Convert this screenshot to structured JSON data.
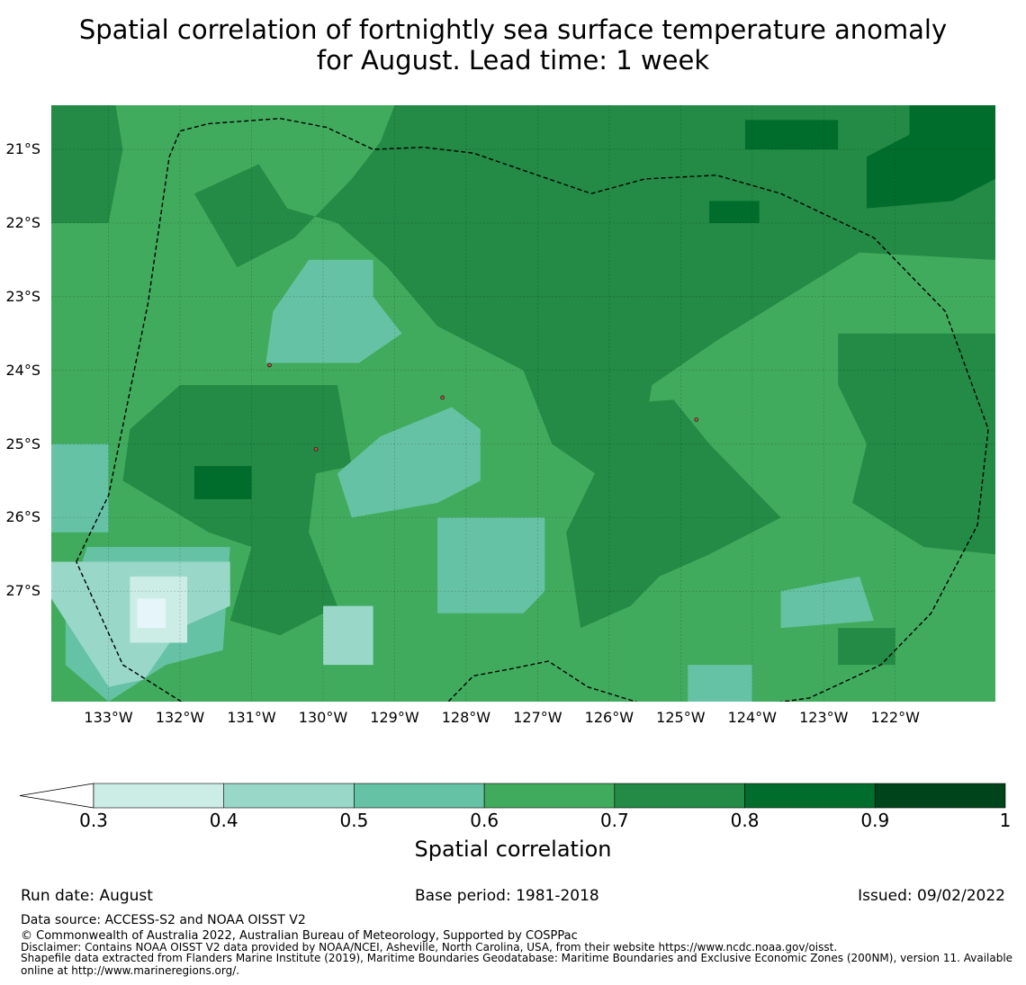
{
  "title": {
    "line1": "Spatial correlation of fortnightly sea surface temperature anomaly",
    "line2": "for August. Lead time: 1 week"
  },
  "map": {
    "lon_range": [
      -133.8,
      -120.6
    ],
    "lat_range": [
      -28.5,
      -20.4
    ],
    "lat_ticks": [
      {
        "value": -21,
        "label": "21°S"
      },
      {
        "value": -22,
        "label": "22°S"
      },
      {
        "value": -23,
        "label": "23°S"
      },
      {
        "value": -24,
        "label": "24°S"
      },
      {
        "value": -25,
        "label": "25°S"
      },
      {
        "value": -26,
        "label": "26°S"
      },
      {
        "value": -27,
        "label": "27°S"
      }
    ],
    "lon_ticks": [
      {
        "value": -133,
        "label": "133°W"
      },
      {
        "value": -132,
        "label": "132°W"
      },
      {
        "value": -131,
        "label": "131°W"
      },
      {
        "value": -130,
        "label": "130°W"
      },
      {
        "value": -129,
        "label": "129°W"
      },
      {
        "value": -128,
        "label": "128°W"
      },
      {
        "value": -127,
        "label": "127°W"
      },
      {
        "value": -126,
        "label": "126°W"
      },
      {
        "value": -125,
        "label": "125°W"
      },
      {
        "value": -124,
        "label": "124°W"
      },
      {
        "value": -123,
        "label": "123°W"
      },
      {
        "value": -122,
        "label": "122°W"
      }
    ],
    "base_color": "#41ab5d",
    "regions": [
      {
        "level": 0.7,
        "color": "#238b45",
        "poly": [
          [
            -129,
            -20.4
          ],
          [
            -120.6,
            -20.4
          ],
          [
            -120.6,
            -22.5
          ],
          [
            -122.5,
            -22.4
          ],
          [
            -123.5,
            -23.0
          ],
          [
            -124.5,
            -23.6
          ],
          [
            -125.4,
            -24.2
          ],
          [
            -125.6,
            -25.3
          ],
          [
            -126.2,
            -25.4
          ],
          [
            -126.8,
            -25.0
          ],
          [
            -127.2,
            -24.0
          ],
          [
            -128.4,
            -23.4
          ],
          [
            -129.1,
            -22.6
          ],
          [
            -129.8,
            -22.0
          ],
          [
            -130.5,
            -21.8
          ],
          [
            -130.9,
            -21.2
          ],
          [
            -131.8,
            -21.6
          ],
          [
            -131.2,
            -22.6
          ],
          [
            -130.4,
            -22.2
          ],
          [
            -129.6,
            -21.4
          ],
          [
            -129.2,
            -20.9
          ]
        ]
      },
      {
        "level": 0.7,
        "color": "#238b45",
        "poly": [
          [
            -133.8,
            -20.4
          ],
          [
            -132.9,
            -20.4
          ],
          [
            -132.8,
            -21.0
          ],
          [
            -133.0,
            -22.0
          ],
          [
            -133.8,
            -22.0
          ]
        ]
      },
      {
        "level": 0.7,
        "color": "#238b45",
        "poly": [
          [
            -132.0,
            -24.2
          ],
          [
            -129.8,
            -24.2
          ],
          [
            -129.6,
            -25.3
          ],
          [
            -130.1,
            -25.4
          ],
          [
            -130.2,
            -26.2
          ],
          [
            -129.8,
            -27.2
          ],
          [
            -130.6,
            -27.6
          ],
          [
            -131.3,
            -27.4
          ],
          [
            -131.0,
            -26.4
          ],
          [
            -131.6,
            -26.2
          ],
          [
            -132.8,
            -25.5
          ],
          [
            -132.7,
            -24.8
          ]
        ]
      },
      {
        "level": 0.7,
        "color": "#238b45",
        "poly": [
          [
            -126.5,
            -24.5
          ],
          [
            -125.1,
            -24.4
          ],
          [
            -124.6,
            -25.0
          ],
          [
            -124.1,
            -25.5
          ],
          [
            -123.6,
            -26.0
          ],
          [
            -124.6,
            -26.5
          ],
          [
            -125.3,
            -26.8
          ],
          [
            -125.7,
            -27.2
          ],
          [
            -126.4,
            -27.5
          ],
          [
            -126.6,
            -26.2
          ],
          [
            -126.2,
            -25.4
          ]
        ]
      },
      {
        "level": 0.7,
        "color": "#238b45",
        "poly": [
          [
            -122.8,
            -23.5
          ],
          [
            -120.6,
            -23.5
          ],
          [
            -120.6,
            -26.5
          ],
          [
            -121.6,
            -26.4
          ],
          [
            -122.6,
            -25.8
          ],
          [
            -122.4,
            -25.0
          ],
          [
            -122.8,
            -24.2
          ]
        ]
      },
      {
        "level": 0.7,
        "color": "#238b45",
        "poly": [
          [
            -122.8,
            -27.5
          ],
          [
            -122.0,
            -27.5
          ],
          [
            -122.0,
            -28.0
          ],
          [
            -122.8,
            -28.0
          ]
        ]
      },
      {
        "level": 0.8,
        "color": "#006d2c",
        "poly": [
          [
            -121.8,
            -20.4
          ],
          [
            -120.6,
            -20.4
          ],
          [
            -120.6,
            -21.4
          ],
          [
            -121.2,
            -21.7
          ],
          [
            -122.4,
            -21.8
          ],
          [
            -122.4,
            -21.1
          ],
          [
            -121.8,
            -20.8
          ]
        ]
      },
      {
        "level": 0.8,
        "color": "#006d2c",
        "poly": [
          [
            -124.1,
            -20.6
          ],
          [
            -122.8,
            -20.6
          ],
          [
            -122.8,
            -21.0
          ],
          [
            -124.1,
            -21.0
          ]
        ]
      },
      {
        "level": 0.8,
        "color": "#006d2c",
        "poly": [
          [
            -124.6,
            -21.7
          ],
          [
            -123.9,
            -21.7
          ],
          [
            -123.9,
            -22.0
          ],
          [
            -124.6,
            -22.0
          ]
        ]
      },
      {
        "level": 0.8,
        "color": "#006d2c",
        "poly": [
          [
            -131.8,
            -25.3
          ],
          [
            -131.0,
            -25.3
          ],
          [
            -131.0,
            -25.75
          ],
          [
            -131.8,
            -25.75
          ]
        ]
      },
      {
        "level": 0.6,
        "color": "#66c2a4",
        "poly": [
          [
            -130.2,
            -22.5
          ],
          [
            -129.3,
            -22.5
          ],
          [
            -129.3,
            -23.0
          ],
          [
            -128.9,
            -23.5
          ],
          [
            -129.5,
            -23.9
          ],
          [
            -130.8,
            -23.9
          ],
          [
            -130.7,
            -23.2
          ]
        ]
      },
      {
        "level": 0.6,
        "color": "#66c2a4",
        "poly": [
          [
            -129.2,
            -24.9
          ],
          [
            -128.2,
            -24.5
          ],
          [
            -127.8,
            -24.8
          ],
          [
            -127.8,
            -25.5
          ],
          [
            -128.4,
            -25.8
          ],
          [
            -129.6,
            -26.0
          ],
          [
            -129.8,
            -25.4
          ]
        ]
      },
      {
        "level": 0.6,
        "color": "#66c2a4",
        "poly": [
          [
            -128.4,
            -26.0
          ],
          [
            -126.9,
            -26.0
          ],
          [
            -126.9,
            -27.0
          ],
          [
            -127.2,
            -27.3
          ],
          [
            -128.4,
            -27.3
          ]
        ]
      },
      {
        "level": 0.6,
        "color": "#66c2a4",
        "poly": [
          [
            -133.8,
            -25.0
          ],
          [
            -133.0,
            -25.0
          ],
          [
            -133.0,
            -26.2
          ],
          [
            -133.8,
            -26.2
          ]
        ]
      },
      {
        "level": 0.6,
        "color": "#66c2a4",
        "poly": [
          [
            -133.3,
            -26.4
          ],
          [
            -131.3,
            -26.4
          ],
          [
            -131.4,
            -27.8
          ],
          [
            -132.2,
            -28.0
          ],
          [
            -133.0,
            -28.5
          ],
          [
            -133.6,
            -28.0
          ],
          [
            -133.6,
            -27.3
          ]
        ]
      },
      {
        "level": 0.6,
        "color": "#66c2a4",
        "poly": [
          [
            -123.6,
            -27.0
          ],
          [
            -122.5,
            -26.8
          ],
          [
            -122.3,
            -27.4
          ],
          [
            -123.6,
            -27.5
          ]
        ]
      },
      {
        "level": 0.6,
        "color": "#66c2a4",
        "poly": [
          [
            -124.9,
            -28.0
          ],
          [
            -124.0,
            -28.0
          ],
          [
            -124.0,
            -28.5
          ],
          [
            -124.9,
            -28.5
          ]
        ]
      },
      {
        "level": 0.5,
        "color": "#99d8c9",
        "poly": [
          [
            -133.8,
            -26.6
          ],
          [
            -131.3,
            -26.6
          ],
          [
            -131.3,
            -27.2
          ],
          [
            -132.0,
            -27.5
          ],
          [
            -132.5,
            -28.2
          ],
          [
            -133.0,
            -28.3
          ],
          [
            -133.8,
            -27.1
          ]
        ]
      },
      {
        "level": 0.5,
        "color": "#99d8c9",
        "poly": [
          [
            -130.0,
            -27.2
          ],
          [
            -129.3,
            -27.2
          ],
          [
            -129.3,
            -28.0
          ],
          [
            -130.0,
            -28.0
          ]
        ]
      },
      {
        "level": 0.4,
        "color": "#ccece6",
        "poly": [
          [
            -132.7,
            -26.8
          ],
          [
            -131.9,
            -26.8
          ],
          [
            -131.9,
            -27.7
          ],
          [
            -132.7,
            -27.7
          ]
        ]
      },
      {
        "level": 0.3,
        "color": "#e5f5f9",
        "poly": [
          [
            -132.6,
            -27.1
          ],
          [
            -132.2,
            -27.1
          ],
          [
            -132.2,
            -27.5
          ],
          [
            -132.6,
            -27.5
          ]
        ]
      }
    ],
    "eez_boundary": [
      [
        -133.45,
        -26.6
      ],
      [
        -133.0,
        -25.7
      ],
      [
        -132.45,
        -23.1
      ],
      [
        -132.15,
        -21.1
      ],
      [
        -132.0,
        -20.75
      ],
      [
        -131.6,
        -20.65
      ],
      [
        -130.6,
        -20.58
      ],
      [
        -129.95,
        -20.7
      ],
      [
        -129.3,
        -21.0
      ],
      [
        -128.6,
        -20.97
      ],
      [
        -127.9,
        -21.05
      ],
      [
        -127.15,
        -21.3
      ],
      [
        -126.25,
        -21.6
      ],
      [
        -125.5,
        -21.4
      ],
      [
        -124.5,
        -21.35
      ],
      [
        -123.6,
        -21.6
      ],
      [
        -122.3,
        -22.2
      ],
      [
        -121.3,
        -23.2
      ],
      [
        -120.7,
        -24.8
      ],
      [
        -120.85,
        -26.1
      ],
      [
        -121.5,
        -27.3
      ],
      [
        -122.2,
        -28.0
      ],
      [
        -123.2,
        -28.45
      ],
      [
        -124.3,
        -28.6
      ],
      [
        -125.3,
        -28.6
      ],
      [
        -126.3,
        -28.3
      ],
      [
        -126.85,
        -27.95
      ],
      [
        -127.35,
        -28.05
      ],
      [
        -127.9,
        -28.15
      ],
      [
        -128.45,
        -28.7
      ],
      [
        -129.3,
        -28.9
      ],
      [
        -130.1,
        -29.05
      ],
      [
        -131.0,
        -28.9
      ],
      [
        -131.9,
        -28.55
      ],
      [
        -132.8,
        -28.0
      ],
      [
        -133.45,
        -26.6
      ]
    ],
    "islands": [
      {
        "lon": -128.33,
        "lat": -24.37
      },
      {
        "lon": -130.1,
        "lat": -25.07
      },
      {
        "lon": -124.78,
        "lat": -24.67
      },
      {
        "lon": -130.75,
        "lat": -23.93
      }
    ]
  },
  "colorbar": {
    "extend_color": "#ffffff",
    "bins": [
      {
        "from": 0.3,
        "to": 0.4,
        "color": "#ccece6"
      },
      {
        "from": 0.4,
        "to": 0.5,
        "color": "#99d8c9"
      },
      {
        "from": 0.5,
        "to": 0.6,
        "color": "#66c2a4"
      },
      {
        "from": 0.6,
        "to": 0.7,
        "color": "#41ab5d"
      },
      {
        "from": 0.7,
        "to": 0.8,
        "color": "#238b45"
      },
      {
        "from": 0.8,
        "to": 0.9,
        "color": "#006d2c"
      },
      {
        "from": 0.9,
        "to": 1.0,
        "color": "#00441b"
      }
    ],
    "ticks": [
      "0.3",
      "0.4",
      "0.5",
      "0.6",
      "0.7",
      "0.8",
      "0.9",
      "1"
    ],
    "label": "Spatial correlation"
  },
  "footer": {
    "run_date": "Run date: August",
    "base_period": "Base period: 1981-2018",
    "issued": "Issued: 09/02/2022",
    "data_source": "Data source: ACCESS-S2 and NOAA OISST V2",
    "copyright": "© Commonwealth of Australia 2022, Australian Bureau of Meteorology, Supported by COSPPac",
    "disclaimer": "Disclaimer: Contains NOAA OISST V2 data provided by NOAA/NCEI, Asheville, North Carolina, USA, from their website https://www.ncdc.noaa.gov/oisst.",
    "shapefile": "Shapefile data extracted from Flanders Marine Institute (2019), Maritime Boundaries Geodatabase: Maritime Boundaries and Exclusive Economic Zones (200NM), version 11. Available online at http://www.marineregions.org/."
  }
}
